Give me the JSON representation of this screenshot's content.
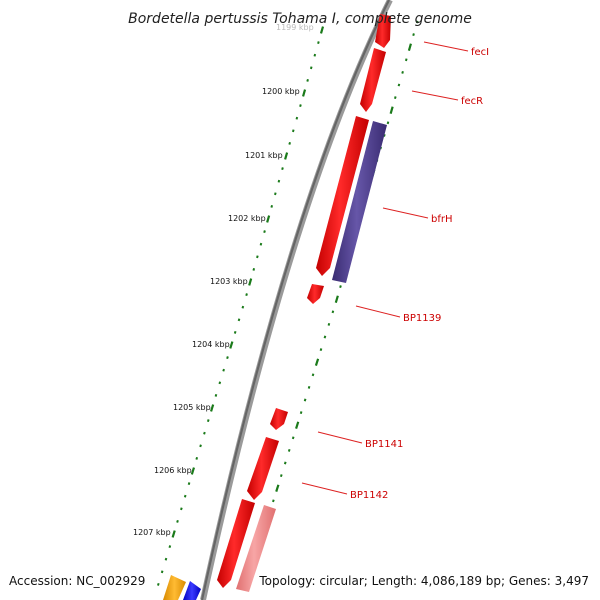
{
  "title": "Bordetella pertussis Tohama I, complete genome",
  "footer": {
    "accession": "Accession: NC_002929",
    "summary": "Topology: circular; Length: 4,086,189 bp; Genes: 3,497"
  },
  "colors": {
    "backbone": "#777777",
    "tick_green": "#1a7a1a",
    "gene_red": "#ee1111",
    "gene_pink": "#f08a8a",
    "gene_purple": "#4b3a8c",
    "gene_orange": "#f5a000",
    "gene_blue": "#1a1aee",
    "label_red": "#cc0000"
  },
  "kbp_labels": [
    "1199 kbp",
    "1200 kbp",
    "1201 kbp",
    "1202 kbp",
    "1203 kbp",
    "1204 kbp",
    "1205 kbp",
    "1206 kbp",
    "1207 kbp"
  ],
  "gene_labels": [
    "fecI",
    "fecR",
    "bfrH",
    "BP1139",
    "BP1141",
    "BP1142"
  ]
}
